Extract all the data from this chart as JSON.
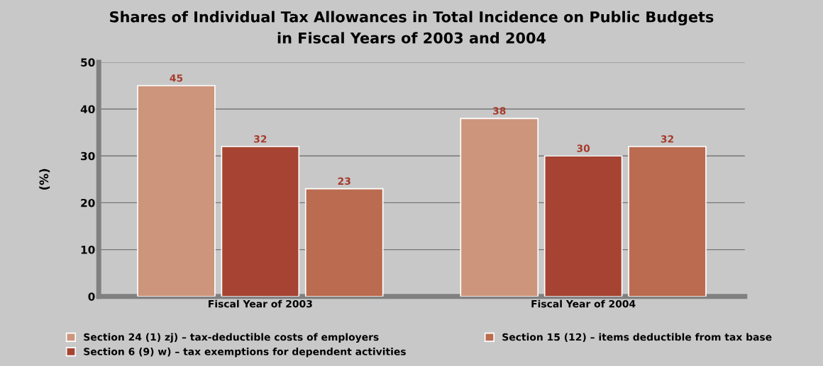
{
  "chart_data": {
    "type": "bar",
    "title": "Shares of Individual Tax Allowances in Total Incidence on Public Budgets\nin Fiscal Years of 2003 and 2004",
    "ylabel": "(%)",
    "categories": [
      "Fiscal Year of 2003",
      "Fiscal Year of 2004"
    ],
    "series": [
      {
        "name": "Section 24 (1) zj) – tax-deductible costs of employers",
        "color": "#cc957c",
        "values": [
          45,
          38
        ]
      },
      {
        "name": "Section 6 (9) w) – tax exemptions for dependent activities",
        "color": "#a64332",
        "values": [
          32,
          30
        ]
      },
      {
        "name": "Section 15 (12) – items deductible from tax base",
        "color": "#bb6b50",
        "values": [
          23,
          32
        ]
      }
    ],
    "ylim": [
      0,
      50
    ],
    "yticks": [
      0,
      10,
      20,
      30,
      40,
      50
    ],
    "grid": "y",
    "legend": "bottom",
    "data_labels": true
  }
}
